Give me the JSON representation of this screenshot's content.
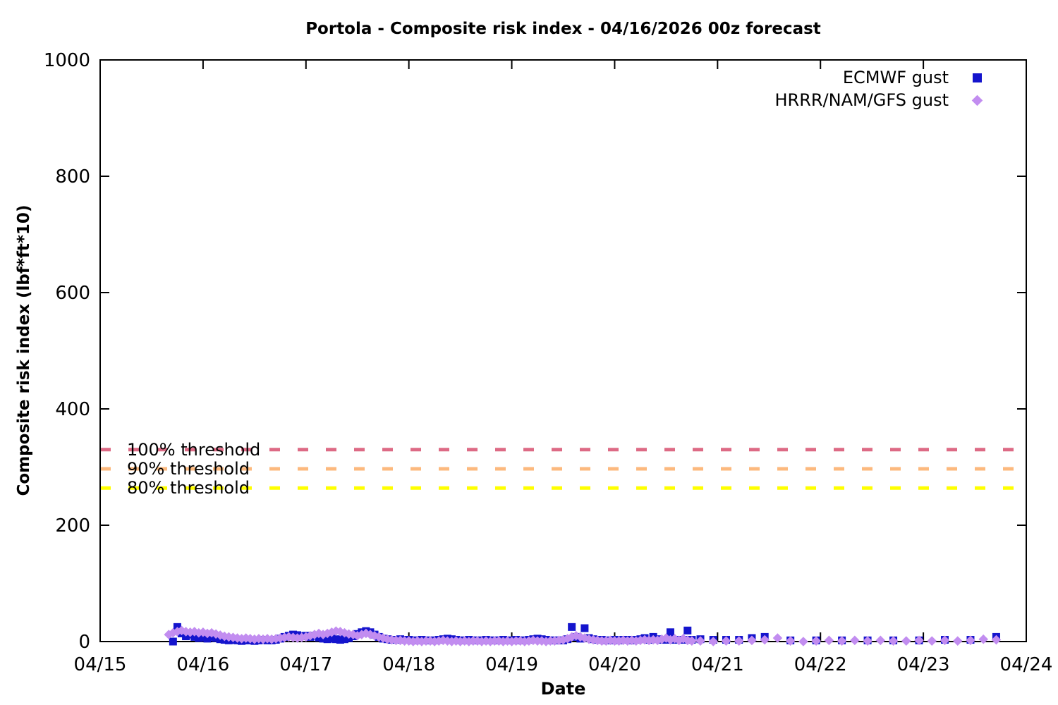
{
  "chart_data": {
    "type": "scatter",
    "title": "Portola - Composite risk index - 04/16/2026 00z forecast",
    "xlabel": "Date",
    "ylabel": "Composite risk index (lbf*ft*10)",
    "grid": false,
    "legend_position": "top-right",
    "x_axis": {
      "tick_labels": [
        "04/15",
        "04/16",
        "04/17",
        "04/18",
        "04/19",
        "04/20",
        "04/21",
        "04/22",
        "04/23",
        "04/24"
      ],
      "tick_days": [
        0,
        1,
        2,
        3,
        4,
        5,
        6,
        7,
        8,
        9
      ],
      "unit_note": "point x values are hours after 04/15 00z"
    },
    "y_axis": {
      "ticks": [
        0,
        200,
        400,
        600,
        800,
        1000
      ],
      "range": [
        0,
        1000
      ]
    },
    "thresholds": [
      {
        "label": "100% threshold",
        "value": 330,
        "color": "#dd6a85"
      },
      {
        "label": "90% threshold",
        "value": 297,
        "color": "#fcb97e"
      },
      {
        "label": "80% threshold",
        "value": 264,
        "color": "#ffff00"
      }
    ],
    "series": [
      {
        "name": "ECMWF gust",
        "marker": "square",
        "color": "#1414cd",
        "points": [
          [
            17,
            0
          ],
          [
            18,
            25
          ],
          [
            19,
            14
          ],
          [
            20,
            9
          ],
          [
            21,
            12
          ],
          [
            22,
            8
          ],
          [
            23,
            6
          ],
          [
            24,
            7
          ],
          [
            25,
            5
          ],
          [
            26,
            8
          ],
          [
            27,
            6
          ],
          [
            28,
            4
          ],
          [
            29,
            3
          ],
          [
            30,
            2
          ],
          [
            31,
            3
          ],
          [
            32,
            2
          ],
          [
            33,
            1
          ],
          [
            34,
            2
          ],
          [
            35,
            2
          ],
          [
            36,
            1
          ],
          [
            37,
            2
          ],
          [
            38,
            3
          ],
          [
            39,
            2
          ],
          [
            40,
            2
          ],
          [
            41,
            3
          ],
          [
            42,
            5
          ],
          [
            43,
            8
          ],
          [
            44,
            10
          ],
          [
            45,
            12
          ],
          [
            46,
            11
          ],
          [
            47,
            9
          ],
          [
            48,
            10
          ],
          [
            49,
            8
          ],
          [
            50,
            10
          ],
          [
            51,
            7
          ],
          [
            52,
            5
          ],
          [
            53,
            4
          ],
          [
            54,
            5
          ],
          [
            55,
            4
          ],
          [
            56,
            3
          ],
          [
            57,
            4
          ],
          [
            58,
            6
          ],
          [
            59,
            9
          ],
          [
            60,
            13
          ],
          [
            61,
            16
          ],
          [
            62,
            18
          ],
          [
            63,
            16
          ],
          [
            64,
            12
          ],
          [
            65,
            8
          ],
          [
            66,
            5
          ],
          [
            67,
            4
          ],
          [
            68,
            3
          ],
          [
            69,
            3
          ],
          [
            70,
            4
          ],
          [
            71,
            3
          ],
          [
            72,
            3
          ],
          [
            73,
            2
          ],
          [
            74,
            2
          ],
          [
            75,
            3
          ],
          [
            76,
            2
          ],
          [
            77,
            2
          ],
          [
            78,
            2
          ],
          [
            79,
            3
          ],
          [
            80,
            4
          ],
          [
            81,
            5
          ],
          [
            82,
            4
          ],
          [
            83,
            3
          ],
          [
            84,
            2
          ],
          [
            85,
            2
          ],
          [
            86,
            3
          ],
          [
            87,
            2
          ],
          [
            88,
            2
          ],
          [
            89,
            2
          ],
          [
            90,
            3
          ],
          [
            91,
            2
          ],
          [
            92,
            2
          ],
          [
            93,
            2
          ],
          [
            94,
            3
          ],
          [
            95,
            2
          ],
          [
            96,
            2
          ],
          [
            97,
            3
          ],
          [
            98,
            2
          ],
          [
            99,
            2
          ],
          [
            100,
            3
          ],
          [
            101,
            4
          ],
          [
            102,
            5
          ],
          [
            103,
            4
          ],
          [
            104,
            3
          ],
          [
            105,
            2
          ],
          [
            106,
            2
          ],
          [
            107,
            2
          ],
          [
            108,
            2
          ],
          [
            109,
            4
          ],
          [
            110,
            25
          ],
          [
            111,
            8
          ],
          [
            112,
            5
          ],
          [
            113,
            23
          ],
          [
            114,
            6
          ],
          [
            115,
            4
          ],
          [
            116,
            3
          ],
          [
            117,
            3
          ],
          [
            118,
            2
          ],
          [
            119,
            2
          ],
          [
            120,
            3
          ],
          [
            121,
            2
          ],
          [
            122,
            3
          ],
          [
            123,
            3
          ],
          [
            124,
            2
          ],
          [
            125,
            3
          ],
          [
            126,
            4
          ],
          [
            127,
            6
          ],
          [
            128,
            3
          ],
          [
            129,
            8
          ],
          [
            130,
            4
          ],
          [
            131,
            3
          ],
          [
            132,
            3
          ],
          [
            133,
            16
          ],
          [
            134,
            3
          ],
          [
            135,
            3
          ],
          [
            136,
            3
          ],
          [
            137,
            19
          ],
          [
            138,
            3
          ],
          [
            140,
            4
          ],
          [
            143,
            3
          ],
          [
            146,
            3
          ],
          [
            149,
            3
          ],
          [
            152,
            6
          ],
          [
            155,
            8
          ],
          [
            161,
            2
          ],
          [
            167,
            2
          ],
          [
            173,
            2
          ],
          [
            179,
            2
          ],
          [
            185,
            2
          ],
          [
            191,
            2
          ],
          [
            197,
            3
          ],
          [
            203,
            3
          ],
          [
            209,
            8
          ]
        ]
      },
      {
        "name": "HRRR/NAM/GFS gust",
        "marker": "diamond",
        "color": "#c28df0",
        "points": [
          [
            16,
            12
          ],
          [
            17,
            15
          ],
          [
            18,
            17
          ],
          [
            19,
            19
          ],
          [
            20,
            17
          ],
          [
            21,
            16
          ],
          [
            22,
            17
          ],
          [
            23,
            15
          ],
          [
            24,
            16
          ],
          [
            25,
            14
          ],
          [
            26,
            15
          ],
          [
            27,
            13
          ],
          [
            28,
            11
          ],
          [
            29,
            9
          ],
          [
            30,
            8
          ],
          [
            31,
            7
          ],
          [
            32,
            6
          ],
          [
            33,
            5
          ],
          [
            34,
            6
          ],
          [
            35,
            5
          ],
          [
            36,
            4
          ],
          [
            37,
            5
          ],
          [
            38,
            4
          ],
          [
            39,
            5
          ],
          [
            40,
            4
          ],
          [
            41,
            5
          ],
          [
            42,
            6
          ],
          [
            43,
            7
          ],
          [
            44,
            8
          ],
          [
            45,
            7
          ],
          [
            46,
            6
          ],
          [
            47,
            7
          ],
          [
            48,
            8
          ],
          [
            49,
            10
          ],
          [
            50,
            12
          ],
          [
            51,
            14
          ],
          [
            52,
            12
          ],
          [
            53,
            14
          ],
          [
            54,
            16
          ],
          [
            55,
            18
          ],
          [
            56,
            17
          ],
          [
            57,
            15
          ],
          [
            58,
            13
          ],
          [
            59,
            12
          ],
          [
            60,
            10
          ],
          [
            61,
            12
          ],
          [
            62,
            14
          ],
          [
            63,
            12
          ],
          [
            64,
            10
          ],
          [
            65,
            8
          ],
          [
            66,
            6
          ],
          [
            67,
            4
          ],
          [
            68,
            3
          ],
          [
            69,
            2
          ],
          [
            70,
            2
          ],
          [
            71,
            1
          ],
          [
            72,
            1
          ],
          [
            73,
            0
          ],
          [
            74,
            1
          ],
          [
            75,
            0
          ],
          [
            76,
            1
          ],
          [
            77,
            1
          ],
          [
            78,
            0
          ],
          [
            79,
            1
          ],
          [
            80,
            2
          ],
          [
            81,
            1
          ],
          [
            82,
            0
          ],
          [
            83,
            1
          ],
          [
            84,
            0
          ],
          [
            85,
            1
          ],
          [
            86,
            0
          ],
          [
            87,
            1
          ],
          [
            88,
            1
          ],
          [
            89,
            0
          ],
          [
            90,
            1
          ],
          [
            91,
            0
          ],
          [
            92,
            1
          ],
          [
            93,
            1
          ],
          [
            94,
            0
          ],
          [
            95,
            1
          ],
          [
            96,
            0
          ],
          [
            97,
            1
          ],
          [
            98,
            1
          ],
          [
            99,
            0
          ],
          [
            100,
            1
          ],
          [
            101,
            2
          ],
          [
            102,
            1
          ],
          [
            103,
            1
          ],
          [
            104,
            0
          ],
          [
            105,
            1
          ],
          [
            106,
            1
          ],
          [
            107,
            2
          ],
          [
            108,
            3
          ],
          [
            109,
            5
          ],
          [
            110,
            8
          ],
          [
            111,
            10
          ],
          [
            112,
            8
          ],
          [
            113,
            6
          ],
          [
            114,
            4
          ],
          [
            115,
            3
          ],
          [
            116,
            2
          ],
          [
            117,
            1
          ],
          [
            118,
            1
          ],
          [
            119,
            2
          ],
          [
            120,
            1
          ],
          [
            121,
            1
          ],
          [
            122,
            2
          ],
          [
            123,
            1
          ],
          [
            124,
            2
          ],
          [
            125,
            1
          ],
          [
            126,
            2
          ],
          [
            127,
            3
          ],
          [
            128,
            2
          ],
          [
            129,
            3
          ],
          [
            130,
            2
          ],
          [
            131,
            4
          ],
          [
            132,
            6
          ],
          [
            133,
            3
          ],
          [
            134,
            5
          ],
          [
            135,
            2
          ],
          [
            136,
            5
          ],
          [
            137,
            2
          ],
          [
            138,
            1
          ],
          [
            140,
            1
          ],
          [
            143,
            0
          ],
          [
            146,
            1
          ],
          [
            149,
            1
          ],
          [
            152,
            2
          ],
          [
            155,
            3
          ],
          [
            158,
            6
          ],
          [
            161,
            1
          ],
          [
            164,
            0
          ],
          [
            167,
            1
          ],
          [
            170,
            2
          ],
          [
            173,
            1
          ],
          [
            176,
            2
          ],
          [
            179,
            1
          ],
          [
            182,
            2
          ],
          [
            185,
            1
          ],
          [
            188,
            1
          ],
          [
            191,
            2
          ],
          [
            194,
            1
          ],
          [
            197,
            2
          ],
          [
            200,
            1
          ],
          [
            203,
            2
          ],
          [
            206,
            4
          ],
          [
            209,
            3
          ]
        ]
      }
    ]
  },
  "colors": {
    "background": "#ffffff",
    "axis": "#000000",
    "ecmwf_blue": "#1414cd",
    "hrrr_purple": "#c28df0",
    "threshold_100": "#dd6a85",
    "threshold_90": "#fcb97e",
    "threshold_80": "#ffff00"
  }
}
